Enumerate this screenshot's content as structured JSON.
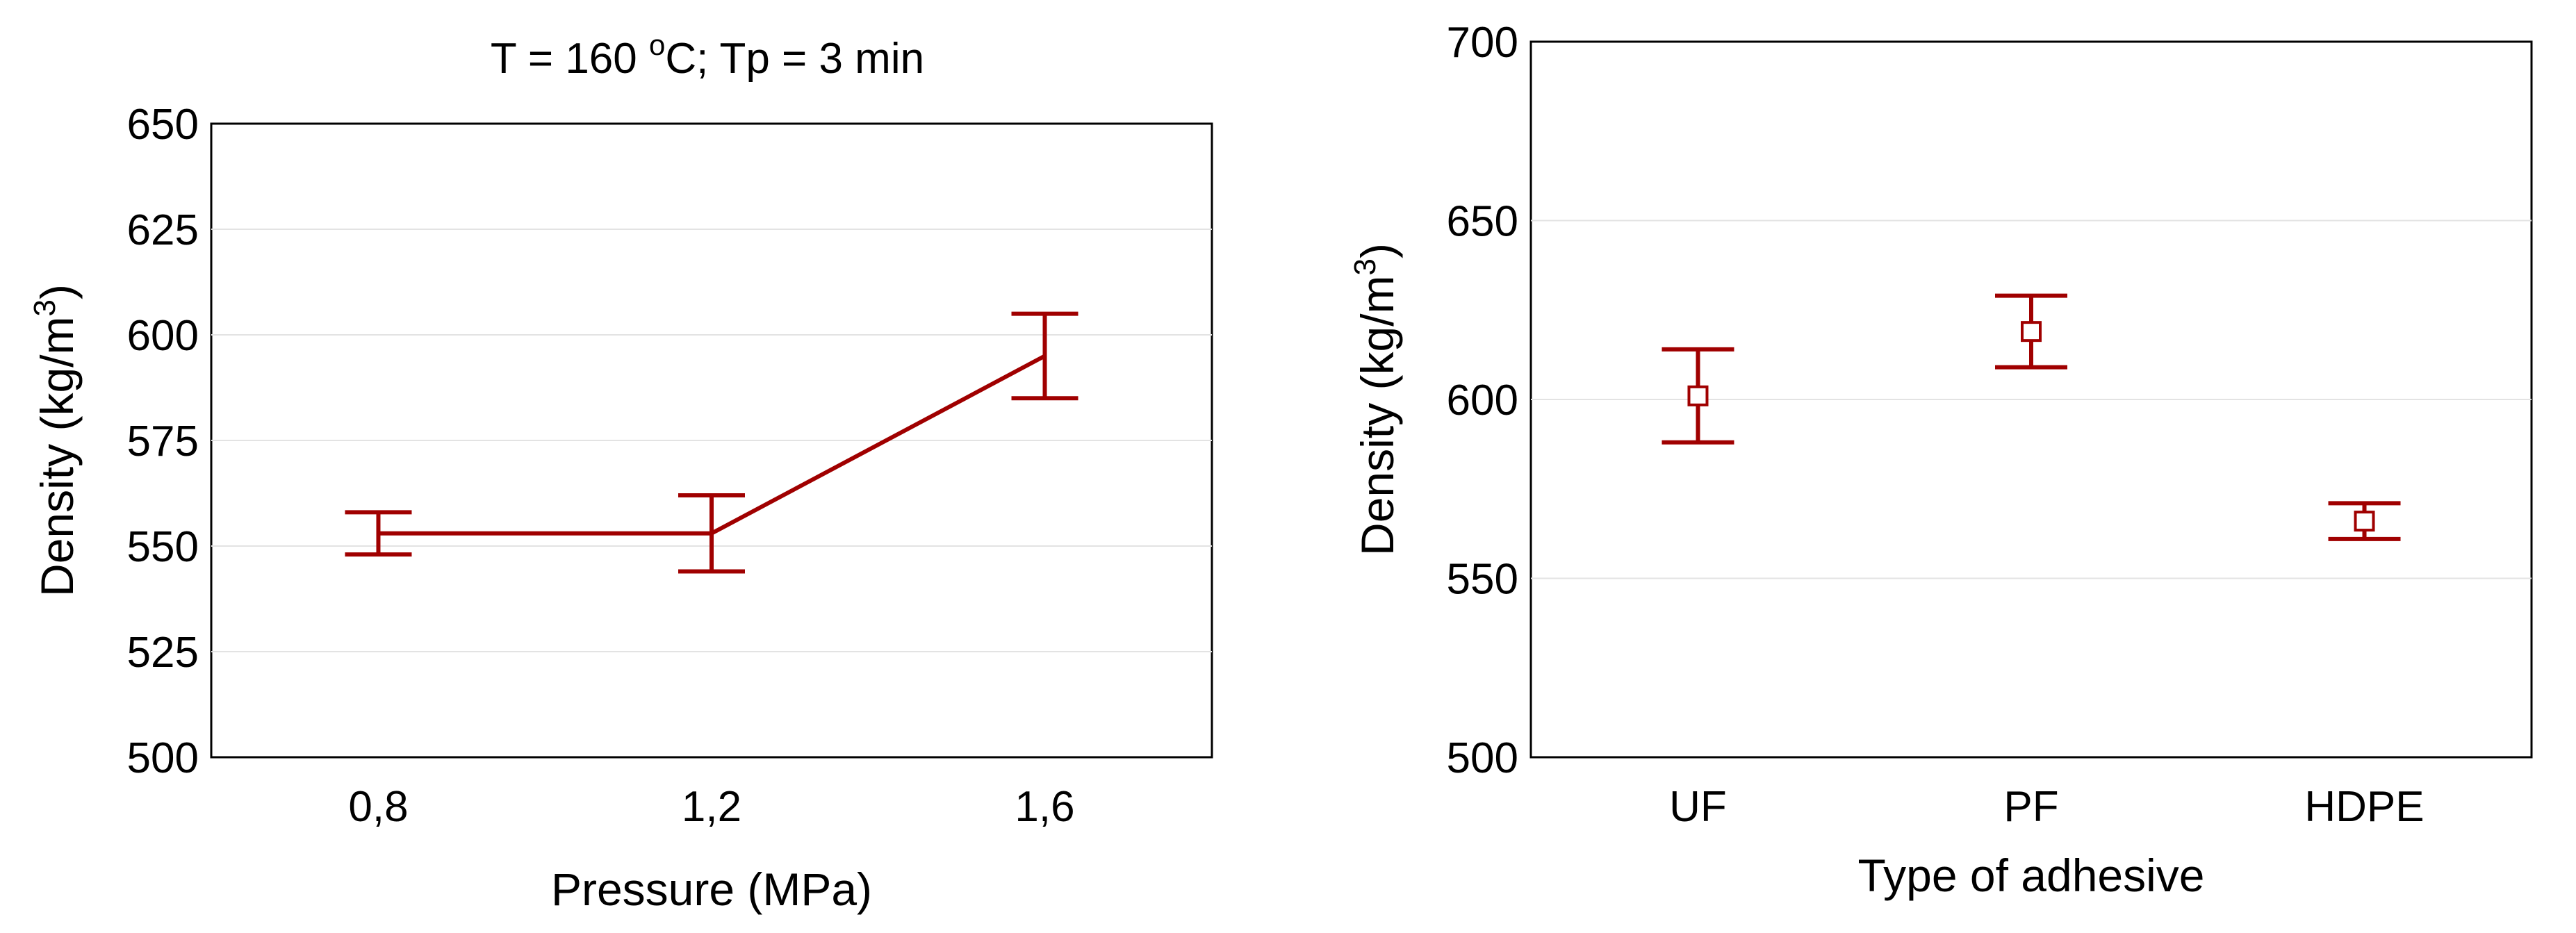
{
  "chart_data": [
    {
      "type": "line",
      "title": "T = 160 ",
      "title_super": "o",
      "title_rest": "C; Tp = 3 min",
      "xlabel": "Pressure (MPa)",
      "ylabel": "Density (kg/m",
      "ylabel_super": "3",
      "ylabel_close": ")",
      "categories": [
        "0,8",
        "1,2",
        "1,6"
      ],
      "series": [
        {
          "values": [
            553,
            553,
            595
          ],
          "lower": [
            548,
            544,
            585
          ],
          "upper": [
            558,
            562,
            605
          ],
          "color": "#a00000"
        }
      ],
      "ylim": [
        500,
        650
      ],
      "yticks": [
        500,
        525,
        550,
        575,
        600,
        625,
        650
      ],
      "grid": true
    },
    {
      "type": "scatter",
      "xlabel": "Type of adhesive",
      "ylabel": "Density (kg/m",
      "ylabel_super": "3",
      "ylabel_close": ")",
      "categories": [
        "UF",
        "PF",
        "HDPE"
      ],
      "series": [
        {
          "values": [
            601,
            619,
            566
          ],
          "lower": [
            588,
            609,
            561
          ],
          "upper": [
            614,
            629,
            571
          ],
          "color": "#a00000",
          "marker": "square"
        }
      ],
      "ylim": [
        500,
        700
      ],
      "yticks": [
        500,
        550,
        600,
        650,
        700
      ],
      "grid": true
    }
  ]
}
